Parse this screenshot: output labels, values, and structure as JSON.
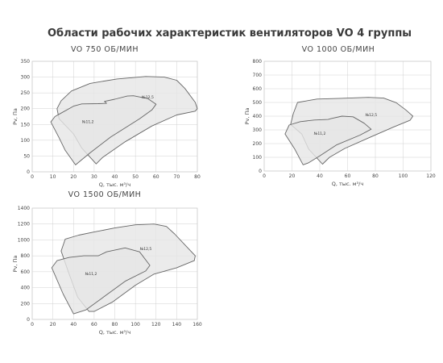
{
  "page_title": "Области рабочих характеристик вентиляторов VO 4 группы",
  "chart_data": [
    {
      "type": "area",
      "title": "VO 750 ОБ/МИН",
      "xlabel": "Q, тыс. м³/ч",
      "ylabel": "Pv, Па",
      "xlim": [
        0,
        80
      ],
      "ylim": [
        0,
        350
      ],
      "xticks": [
        0,
        10,
        20,
        30,
        40,
        50,
        60,
        70,
        80
      ],
      "yticks": [
        0,
        50,
        100,
        150,
        200,
        250,
        300,
        350
      ],
      "grid": true,
      "colors": {
        "fill": "#e6e6e6",
        "outline": "#666666"
      },
      "series": [
        {
          "name": "№12,5",
          "label_at": [
            56,
            232
          ],
          "points": [
            [
              31,
              25
            ],
            [
              24,
              75
            ],
            [
              20,
              120
            ],
            [
              13,
              168
            ],
            [
              12,
              200
            ],
            [
              14,
              225
            ],
            [
              19,
              256
            ],
            [
              28,
              280
            ],
            [
              41,
              294
            ],
            [
              55,
              302
            ],
            [
              64,
              300
            ],
            [
              70,
              290
            ],
            [
              74,
              264
            ],
            [
              79,
              220
            ],
            [
              80,
              200
            ],
            [
              79,
              192
            ],
            [
              70,
              180
            ],
            [
              58,
              145
            ],
            [
              45,
              95
            ],
            [
              34,
              45
            ],
            [
              31,
              25
            ]
          ]
        },
        {
          "name": "№11,2",
          "label_at": [
            27,
            155
          ],
          "points": [
            [
              21,
              22
            ],
            [
              16,
              68
            ],
            [
              13,
              108
            ],
            [
              9,
              158
            ],
            [
              11,
              175
            ],
            [
              14,
              186
            ],
            [
              20,
              208
            ],
            [
              24,
              215
            ],
            [
              32,
              216
            ],
            [
              36,
              217
            ],
            [
              35,
              223
            ],
            [
              40,
              230
            ],
            [
              46,
              240
            ],
            [
              49,
              241
            ],
            [
              56,
              232
            ],
            [
              60,
              214
            ],
            [
              58,
              196
            ],
            [
              52,
              168
            ],
            [
              38,
              110
            ],
            [
              28,
              60
            ],
            [
              21,
              22
            ]
          ]
        }
      ]
    },
    {
      "type": "area",
      "title": "VO 1000 ОБ/МИН",
      "xlabel": "Q, тыс. м³/ч",
      "ylabel": "Pv, Па",
      "xlim": [
        0,
        120
      ],
      "ylim": [
        0,
        800
      ],
      "xticks": [
        0,
        20,
        40,
        60,
        80,
        100,
        120
      ],
      "yticks": [
        0,
        100,
        200,
        300,
        400,
        500,
        600,
        700,
        800
      ],
      "grid": true,
      "colors": {
        "fill": "#e6e6e6",
        "outline": "#666666"
      },
      "series": [
        {
          "name": "№12,5",
          "label_at": [
            77,
            400
          ],
          "points": [
            [
              42,
              50
            ],
            [
              32,
              160
            ],
            [
              27,
              270
            ],
            [
              19,
              340
            ],
            [
              21,
              420
            ],
            [
              24,
              500
            ],
            [
              38,
              525
            ],
            [
              55,
              530
            ],
            [
              75,
              537
            ],
            [
              86,
              532
            ],
            [
              95,
              498
            ],
            [
              102,
              445
            ],
            [
              107,
              400
            ],
            [
              105,
              370
            ],
            [
              93,
              320
            ],
            [
              76,
              245
            ],
            [
              58,
              165
            ],
            [
              47,
              100
            ],
            [
              42,
              50
            ]
          ]
        },
        {
          "name": "№11,2",
          "label_at": [
            40,
            265
          ],
          "points": [
            [
              28,
              45
            ],
            [
              22,
              160
            ],
            [
              15,
              270
            ],
            [
              18,
              335
            ],
            [
              26,
              360
            ],
            [
              36,
              372
            ],
            [
              46,
              376
            ],
            [
              48,
              382
            ],
            [
              56,
              400
            ],
            [
              64,
              395
            ],
            [
              72,
              348
            ],
            [
              77,
              305
            ],
            [
              69,
              262
            ],
            [
              52,
              190
            ],
            [
              40,
              110
            ],
            [
              32,
              60
            ],
            [
              28,
              45
            ]
          ]
        }
      ]
    },
    {
      "type": "area",
      "title": "VO 1500 ОБ/МИН",
      "xlabel": "Q, тыс. м³/ч",
      "ylabel": "Pv, Па",
      "xlim": [
        0,
        160
      ],
      "ylim": [
        0,
        1400
      ],
      "xticks": [
        0,
        20,
        40,
        60,
        80,
        100,
        120,
        140,
        160
      ],
      "yticks": [
        0,
        200,
        400,
        600,
        800,
        1000,
        1200,
        1400
      ],
      "grid": true,
      "colors": {
        "fill": "#e6e6e6",
        "outline": "#666666"
      },
      "series": [
        {
          "name": "№12,5",
          "label_at": [
            110,
            870
          ],
          "points": [
            [
              55,
              100
            ],
            [
              44,
              280
            ],
            [
              35,
              600
            ],
            [
              28,
              860
            ],
            [
              32,
              1010
            ],
            [
              45,
              1060
            ],
            [
              60,
              1100
            ],
            [
              80,
              1150
            ],
            [
              100,
              1190
            ],
            [
              118,
              1200
            ],
            [
              130,
              1170
            ],
            [
              138,
              1075
            ],
            [
              150,
              910
            ],
            [
              158,
              800
            ],
            [
              157,
              740
            ],
            [
              140,
              650
            ],
            [
              118,
              570
            ],
            [
              100,
              430
            ],
            [
              78,
              220
            ],
            [
              60,
              100
            ],
            [
              55,
              100
            ]
          ]
        },
        {
          "name": "№11,2",
          "label_at": [
            57,
            560
          ],
          "points": [
            [
              40,
              70
            ],
            [
              30,
              320
            ],
            [
              19,
              650
            ],
            [
              24,
              740
            ],
            [
              36,
              780
            ],
            [
              50,
              800
            ],
            [
              64,
              800
            ],
            [
              72,
              850
            ],
            [
              90,
              900
            ],
            [
              104,
              850
            ],
            [
              114,
              680
            ],
            [
              110,
              610
            ],
            [
              90,
              480
            ],
            [
              70,
              290
            ],
            [
              52,
              120
            ],
            [
              40,
              70
            ]
          ]
        }
      ]
    }
  ]
}
